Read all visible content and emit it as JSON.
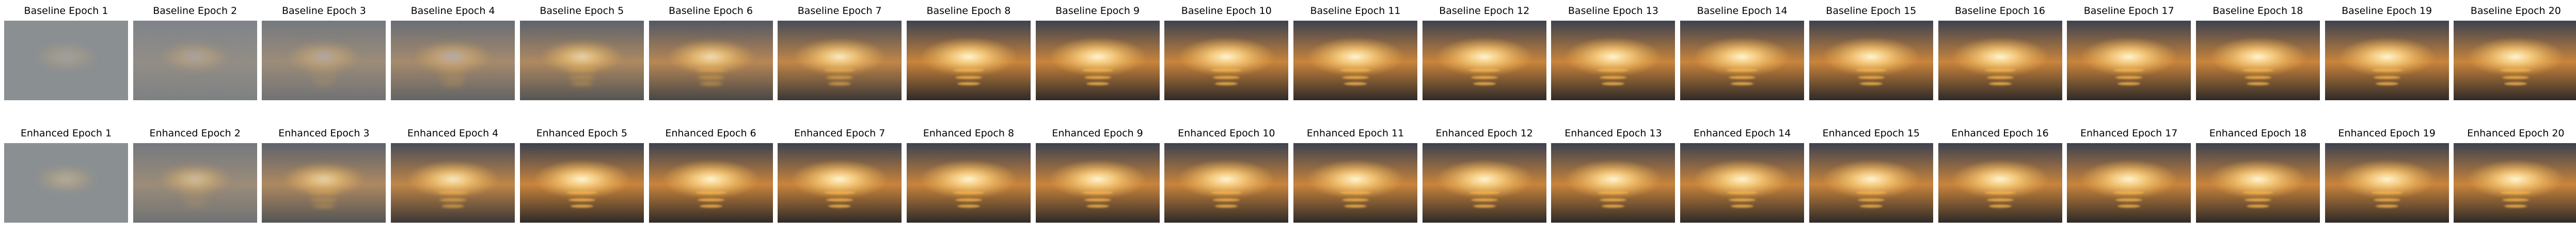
{
  "figure": {
    "rows": [
      {
        "name": "Baseline",
        "panels": [
          {
            "title": "Baseline Epoch 1",
            "epoch": 1
          },
          {
            "title": "Baseline Epoch 2",
            "epoch": 2
          },
          {
            "title": "Baseline Epoch 3",
            "epoch": 3
          },
          {
            "title": "Baseline Epoch 4",
            "epoch": 4
          },
          {
            "title": "Baseline Epoch 5",
            "epoch": 5
          },
          {
            "title": "Baseline Epoch 6",
            "epoch": 6
          },
          {
            "title": "Baseline Epoch 7",
            "epoch": 7
          },
          {
            "title": "Baseline Epoch 8",
            "epoch": 8
          },
          {
            "title": "Baseline Epoch 9",
            "epoch": 9
          },
          {
            "title": "Baseline Epoch 10",
            "epoch": 10
          },
          {
            "title": "Baseline Epoch 11",
            "epoch": 11
          },
          {
            "title": "Baseline Epoch 12",
            "epoch": 12
          },
          {
            "title": "Baseline Epoch 13",
            "epoch": 13
          },
          {
            "title": "Baseline Epoch 14",
            "epoch": 14
          },
          {
            "title": "Baseline Epoch 15",
            "epoch": 15
          },
          {
            "title": "Baseline Epoch 16",
            "epoch": 16
          },
          {
            "title": "Baseline Epoch 17",
            "epoch": 17
          },
          {
            "title": "Baseline Epoch 18",
            "epoch": 18
          },
          {
            "title": "Baseline Epoch 19",
            "epoch": 19
          },
          {
            "title": "Baseline Epoch 20",
            "epoch": 20
          }
        ]
      },
      {
        "name": "Enhanced",
        "panels": [
          {
            "title": "Enhanced Epoch 1",
            "epoch": 1
          },
          {
            "title": "Enhanced Epoch 2",
            "epoch": 2
          },
          {
            "title": "Enhanced Epoch 3",
            "epoch": 3
          },
          {
            "title": "Enhanced Epoch 4",
            "epoch": 4
          },
          {
            "title": "Enhanced Epoch 5",
            "epoch": 5
          },
          {
            "title": "Enhanced Epoch 6",
            "epoch": 6
          },
          {
            "title": "Enhanced Epoch 7",
            "epoch": 7
          },
          {
            "title": "Enhanced Epoch 8",
            "epoch": 8
          },
          {
            "title": "Enhanced Epoch 9",
            "epoch": 9
          },
          {
            "title": "Enhanced Epoch 10",
            "epoch": 10
          },
          {
            "title": "Enhanced Epoch 11",
            "epoch": 11
          },
          {
            "title": "Enhanced Epoch 12",
            "epoch": 12
          },
          {
            "title": "Enhanced Epoch 13",
            "epoch": 13
          },
          {
            "title": "Enhanced Epoch 14",
            "epoch": 14
          },
          {
            "title": "Enhanced Epoch 15",
            "epoch": 15
          },
          {
            "title": "Enhanced Epoch 16",
            "epoch": 16
          },
          {
            "title": "Enhanced Epoch 17",
            "epoch": 17
          },
          {
            "title": "Enhanced Epoch 18",
            "epoch": 18
          },
          {
            "title": "Enhanced Epoch 19",
            "epoch": 19
          },
          {
            "title": "Enhanced Epoch 20",
            "epoch": 20
          }
        ]
      }
    ],
    "colors": {
      "sky_top": "#3d4250",
      "sky_horizon": "#c8843c",
      "sun_core": "#fff6d2",
      "sun_glow": "#f5b44a",
      "sea": "#2e2a28",
      "early_haze": "#8a8f92",
      "early_blue": "#b7c4e8"
    }
  }
}
